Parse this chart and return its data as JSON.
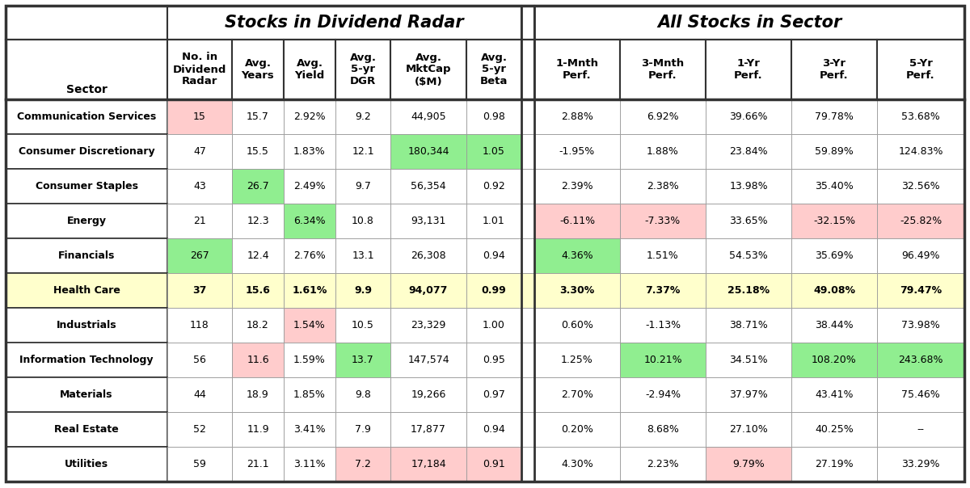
{
  "group1_header": "Stocks in Dividend Radar",
  "group2_header": "All Stocks in Sector",
  "col_headers_div": [
    "No. in\nDividend\nRadar",
    "Avg.\nYears",
    "Avg.\nYield",
    "Avg.\n5-yr\nDGR",
    "Avg.\nMktCap\n($M)",
    "Avg.\n5-yr\nBeta"
  ],
  "col_headers_perf": [
    "1-Mnth\nPerf.",
    "3-Mnth\nPerf.",
    "1-Yr\nPerf.",
    "3-Yr\nPerf.",
    "5-Yr\nPerf."
  ],
  "sectors": [
    "Communication Services",
    "Consumer Discretionary",
    "Consumer Staples",
    "Energy",
    "Financials",
    "Health Care",
    "Industrials",
    "Information Technology",
    "Materials",
    "Real Estate",
    "Utilities"
  ],
  "data": [
    [
      "15",
      "15.7",
      "2.92%",
      "9.2",
      "44,905",
      "0.98",
      "2.88%",
      "6.92%",
      "39.66%",
      "79.78%",
      "53.68%"
    ],
    [
      "47",
      "15.5",
      "1.83%",
      "12.1",
      "180,344",
      "1.05",
      "-1.95%",
      "1.88%",
      "23.84%",
      "59.89%",
      "124.83%"
    ],
    [
      "43",
      "26.7",
      "2.49%",
      "9.7",
      "56,354",
      "0.92",
      "2.39%",
      "2.38%",
      "13.98%",
      "35.40%",
      "32.56%"
    ],
    [
      "21",
      "12.3",
      "6.34%",
      "10.8",
      "93,131",
      "1.01",
      "-6.11%",
      "-7.33%",
      "33.65%",
      "-32.15%",
      "-25.82%"
    ],
    [
      "267",
      "12.4",
      "2.76%",
      "13.1",
      "26,308",
      "0.94",
      "4.36%",
      "1.51%",
      "54.53%",
      "35.69%",
      "96.49%"
    ],
    [
      "37",
      "15.6",
      "1.61%",
      "9.9",
      "94,077",
      "0.99",
      "3.30%",
      "7.37%",
      "25.18%",
      "49.08%",
      "79.47%"
    ],
    [
      "118",
      "18.2",
      "1.54%",
      "10.5",
      "23,329",
      "1.00",
      "0.60%",
      "-1.13%",
      "38.71%",
      "38.44%",
      "73.98%"
    ],
    [
      "56",
      "11.6",
      "1.59%",
      "13.7",
      "147,574",
      "0.95",
      "1.25%",
      "10.21%",
      "34.51%",
      "108.20%",
      "243.68%"
    ],
    [
      "44",
      "18.9",
      "1.85%",
      "9.8",
      "19,266",
      "0.97",
      "2.70%",
      "-2.94%",
      "37.97%",
      "43.41%",
      "75.46%"
    ],
    [
      "52",
      "11.9",
      "3.41%",
      "7.9",
      "17,877",
      "0.94",
      "0.20%",
      "8.68%",
      "27.10%",
      "40.25%",
      "--"
    ],
    [
      "59",
      "21.1",
      "3.11%",
      "7.2",
      "17,184",
      "0.91",
      "4.30%",
      "2.23%",
      "9.79%",
      "27.19%",
      "33.29%"
    ]
  ],
  "cell_colors": {
    "0_0": "#FFCCCC",
    "1_4": "#90EE90",
    "1_5": "#90EE90",
    "2_1": "#90EE90",
    "3_2": "#90EE90",
    "3_6": "#FFCCCC",
    "3_7": "#FFCCCC",
    "3_9": "#FFCCCC",
    "3_10": "#FFCCCC",
    "4_0": "#90EE90",
    "4_6": "#90EE90",
    "6_2": "#FFCCCC",
    "7_1": "#FFCCCC",
    "7_3": "#90EE90",
    "7_7": "#90EE90",
    "7_9": "#90EE90",
    "7_10": "#90EE90",
    "10_3": "#FFCCCC",
    "10_4": "#FFCCCC",
    "10_5": "#FFCCCC",
    "10_8": "#FFCCCC"
  },
  "highlight_row": 5,
  "highlight_color": "#FFFFCC",
  "white": "#FFFFFF",
  "border_thin": "#999999",
  "border_thick": "#333333",
  "fig_w": 12.0,
  "fig_h": 6.04,
  "dpi": 100
}
